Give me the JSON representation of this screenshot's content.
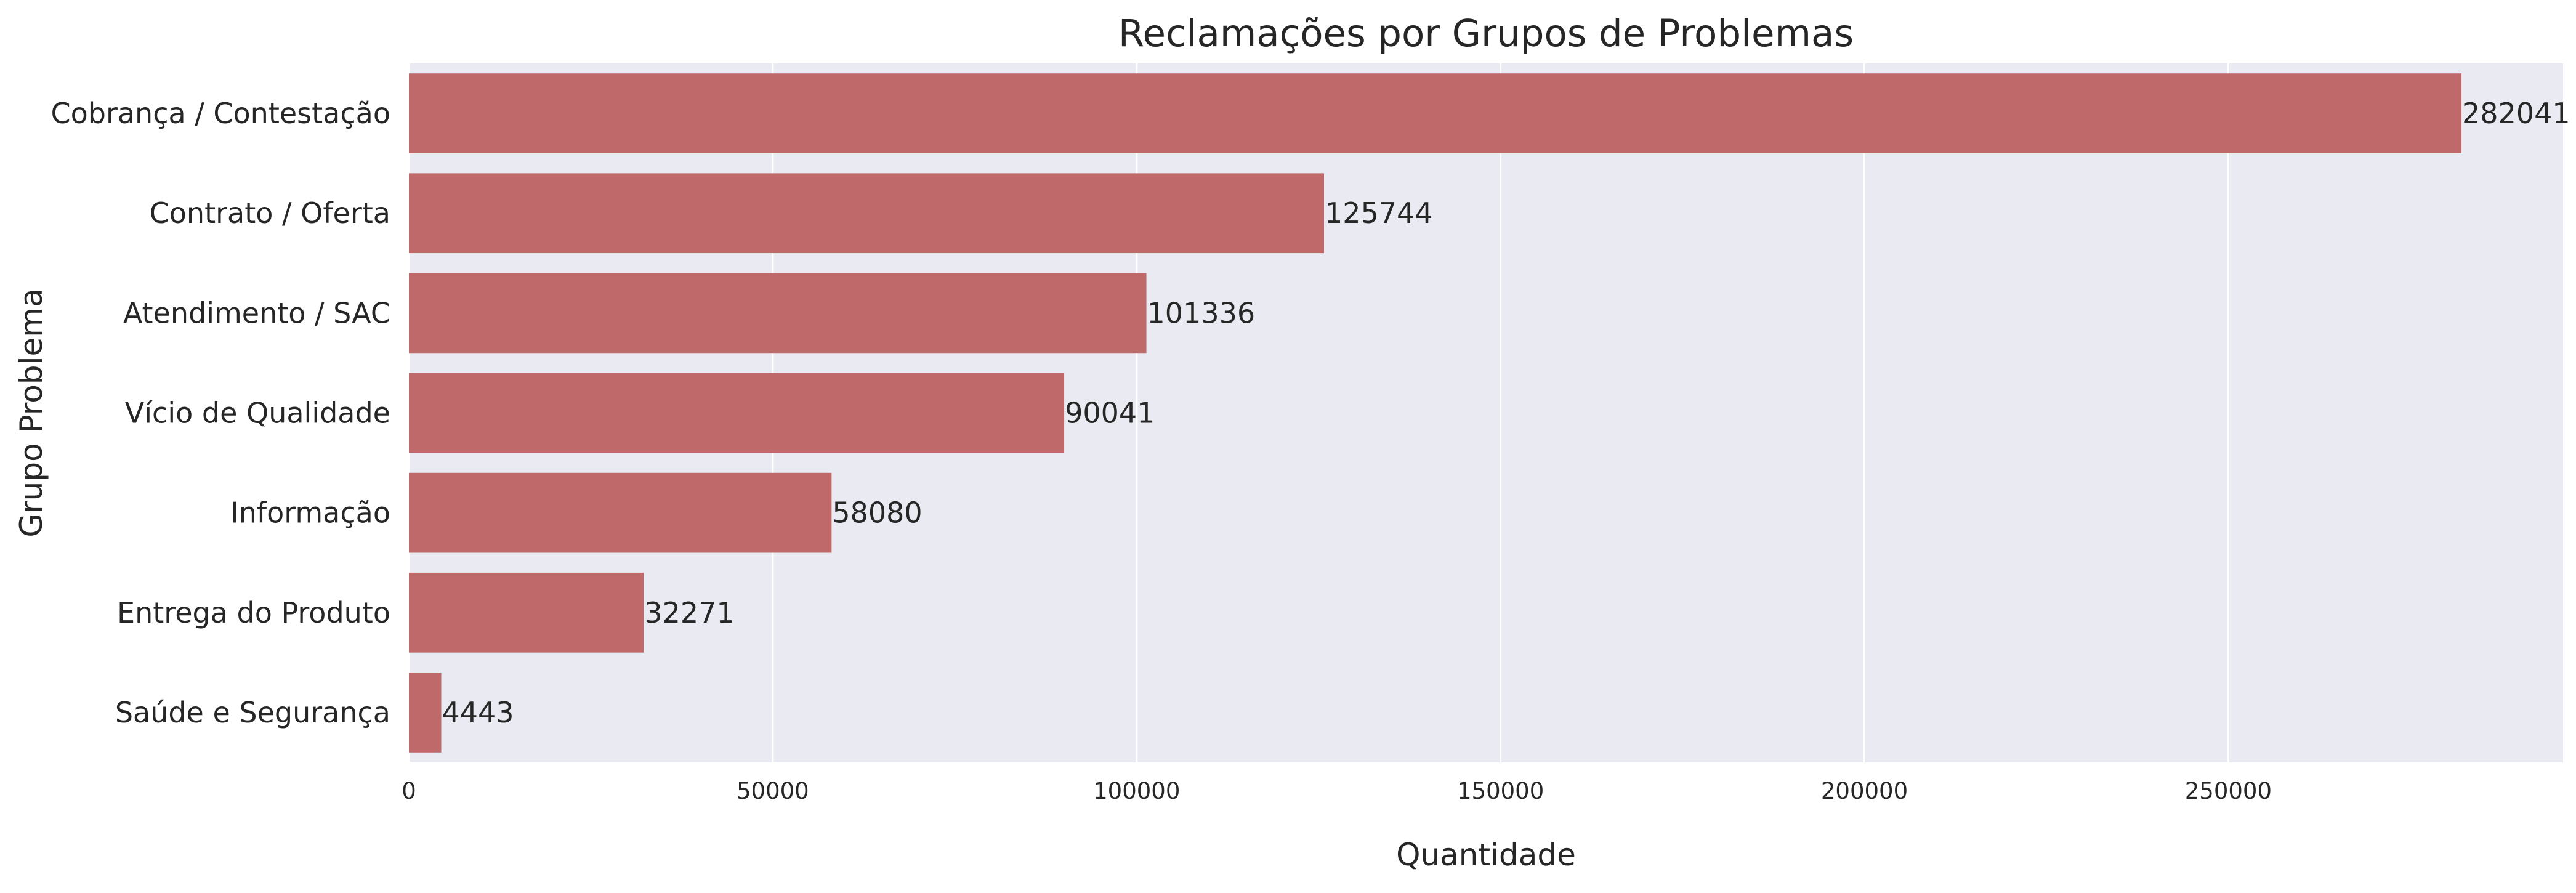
{
  "chart_data": {
    "type": "bar",
    "orientation": "horizontal",
    "title": "Reclamações por Grupos de Problemas",
    "xlabel": "Quantidade",
    "ylabel": "Grupo Problema",
    "categories": [
      "Cobrança / Contestação",
      "Contrato / Oferta",
      "Atendimento / SAC",
      "Vício de Qualidade",
      "Informação",
      "Entrega do Produto",
      "Saúde e Segurança"
    ],
    "values": [
      282041,
      125744,
      101336,
      90041,
      58080,
      32271,
      4443
    ],
    "value_labels": [
      "282041",
      "125744",
      "101336",
      "90041",
      "58080",
      "32271",
      "4443"
    ],
    "xticks": [
      0,
      50000,
      100000,
      150000,
      200000,
      250000
    ],
    "xtick_labels": [
      "0",
      "50000",
      "100000",
      "150000",
      "200000",
      "250000"
    ],
    "xlim": [
      0,
      296000
    ],
    "grid": "vertical",
    "legend": "none",
    "colors": {
      "bar": "#c0696b",
      "plot_background": "#eaeaf2",
      "grid": "#ffffff",
      "text": "#262626"
    }
  }
}
